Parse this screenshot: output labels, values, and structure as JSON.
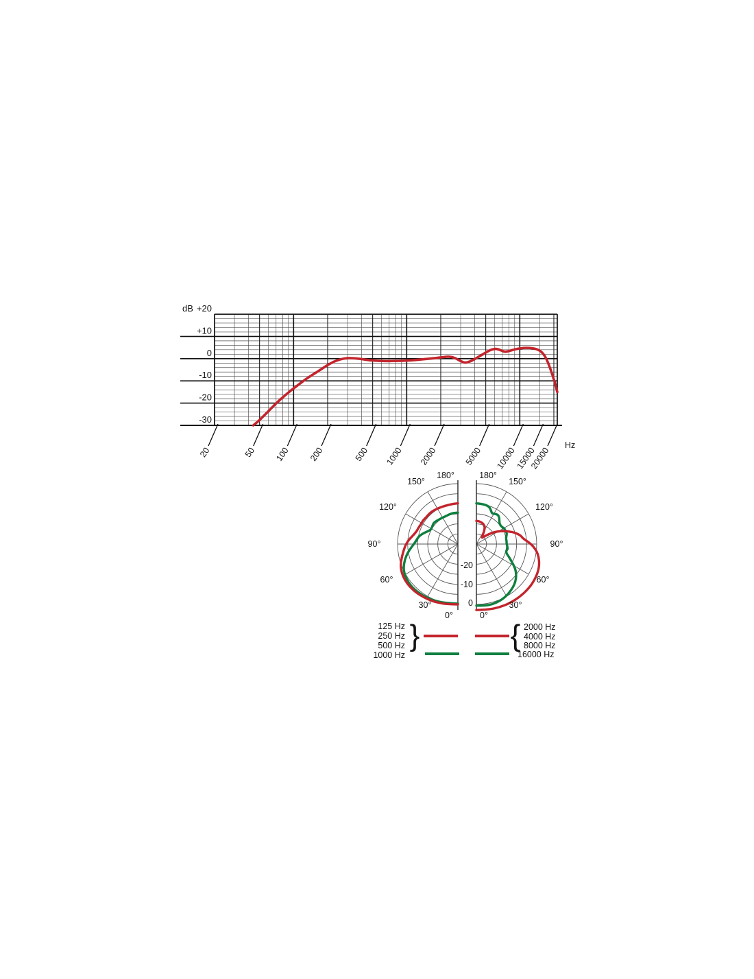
{
  "page": {
    "background": "#ffffff"
  },
  "colors": {
    "red": "#c3242c",
    "green": "#0e7f3e",
    "grid_major": "#111111",
    "grid_minor": "#4d4d4d",
    "polar_grid": "#555555"
  },
  "chart_data": [
    {
      "type": "line",
      "name": "frequency-response",
      "y_unit_label": "dB",
      "x_unit_label": "Hz",
      "y_tick_labels": [
        "+20",
        "+10",
        "0",
        "-10",
        "-20",
        "-30"
      ],
      "y_tick_values": [
        20,
        10,
        0,
        -10,
        -20,
        -30
      ],
      "x_tick_labels": [
        "20",
        "50",
        "100",
        "200",
        "500",
        "1000",
        "2000",
        "5000",
        "10000",
        "15000",
        "20000"
      ],
      "x_tick_values": [
        20,
        50,
        100,
        200,
        500,
        1000,
        2000,
        5000,
        10000,
        15000,
        20000
      ],
      "xlim": [
        20,
        21500
      ],
      "ylim": [
        -30,
        20
      ],
      "x_scale": "log",
      "grid": {
        "minor_db_step": 2,
        "major_db_step": 10
      },
      "series": [
        {
          "name": "on-axis frequency response",
          "color": "#c3242c",
          "points": [
            [
              44,
              -30
            ],
            [
              48,
              -28.5
            ],
            [
              55,
              -25.5
            ],
            [
              63,
              -22.5
            ],
            [
              72,
              -19.5
            ],
            [
              82,
              -17
            ],
            [
              95,
              -14.2
            ],
            [
              110,
              -11.8
            ],
            [
              128,
              -9.2
            ],
            [
              150,
              -7
            ],
            [
              175,
              -4.8
            ],
            [
              200,
              -2.8
            ],
            [
              230,
              -1.2
            ],
            [
              262,
              -0.2
            ],
            [
              300,
              0.3
            ],
            [
              345,
              0.2
            ],
            [
              400,
              -0.2
            ],
            [
              470,
              -0.7
            ],
            [
              560,
              -1
            ],
            [
              680,
              -1.1
            ],
            [
              820,
              -1
            ],
            [
              1000,
              -0.9
            ],
            [
              1200,
              -0.6
            ],
            [
              1450,
              -0.2
            ],
            [
              1750,
              0.2
            ],
            [
              2100,
              0.7
            ],
            [
              2400,
              1
            ],
            [
              2700,
              0.3
            ],
            [
              3000,
              -1.2
            ],
            [
              3300,
              -1.9
            ],
            [
              3700,
              -1.2
            ],
            [
              4200,
              0.5
            ],
            [
              4800,
              2.2
            ],
            [
              5400,
              3.8
            ],
            [
              6000,
              4.5
            ],
            [
              6500,
              4.2
            ],
            [
              6900,
              3.6
            ],
            [
              7400,
              3.0
            ],
            [
              8000,
              3.4
            ],
            [
              9000,
              4.2
            ],
            [
              10200,
              4.7
            ],
            [
              11500,
              4.9
            ],
            [
              13000,
              4.7
            ],
            [
              14300,
              4.2
            ],
            [
              15500,
              3.2
            ],
            [
              16800,
              1.0
            ],
            [
              18000,
              -2.5
            ],
            [
              19200,
              -6.5
            ],
            [
              20500,
              -11
            ],
            [
              21500,
              -15
            ]
          ]
        }
      ]
    },
    {
      "type": "polar",
      "name": "polar-pattern",
      "db_per_ring": 5,
      "ring_db_values": [
        0,
        -5,
        -10,
        -15,
        -20,
        -25
      ],
      "db_min": -30,
      "db_ring_labels": [
        "0",
        "-10",
        "-20"
      ],
      "angle_labels": [
        "0°",
        "30°",
        "60°",
        "90°",
        "120°",
        "150°",
        "180°"
      ],
      "halves": [
        {
          "side": "left",
          "series": [
            {
              "name": "1000 Hz",
              "color": "#0e7f3e",
              "points": [
                [
                  0,
                  -0.4
                ],
                [
                  12,
                  0
                ],
                [
                  24,
                  0.6
                ],
                [
                  34,
                  1.0
                ],
                [
                  44,
                  1.3
                ],
                [
                  52,
                  1.2
                ],
                [
                  60,
                  0.6
                ],
                [
                  67,
                  -0.6
                ],
                [
                  74,
                  -2.6
                ],
                [
                  80,
                  -4.6
                ],
                [
                  86,
                  -6.8
                ],
                [
                  91,
                  -8.4
                ],
                [
                  96,
                  -9.4
                ],
                [
                  101,
                  -10.2
                ],
                [
                  106,
                  -11.6
                ],
                [
                  111,
                  -13.2
                ],
                [
                  116,
                  -14.5
                ],
                [
                  121,
                  -14.8
                ],
                [
                  126,
                  -14.4
                ],
                [
                  131,
                  -14.0
                ],
                [
                  136,
                  -14.3
                ],
                [
                  142,
                  -14.6
                ],
                [
                  149,
                  -14.8
                ],
                [
                  156,
                  -14.9
                ],
                [
                  164,
                  -14.6
                ],
                [
                  172,
                  -14.4
                ],
                [
                  180,
                  -14.4
                ]
              ]
            },
            {
              "name": "125 / 250 / 500 Hz",
              "color": "#c3242c",
              "points": [
                [
                  0,
                  0
                ],
                [
                  10,
                  0.4
                ],
                [
                  20,
                  0.9
                ],
                [
                  30,
                  1.4
                ],
                [
                  40,
                  1.8
                ],
                [
                  48,
                  2.0
                ],
                [
                  56,
                  1.9
                ],
                [
                  63,
                  1.4
                ],
                [
                  70,
                  0.4
                ],
                [
                  78,
                  -1.6
                ],
                [
                  85,
                  -3.2
                ],
                [
                  90,
                  -4.2
                ],
                [
                  96,
                  -5.8
                ],
                [
                  102,
                  -7.6
                ],
                [
                  108,
                  -8.6
                ],
                [
                  113,
                  -8.8
                ],
                [
                  118,
                  -9.2
                ],
                [
                  124,
                  -9.0
                ],
                [
                  130,
                  -9.4
                ],
                [
                  137,
                  -9.2
                ],
                [
                  144,
                  -9.4
                ],
                [
                  151,
                  -9.7
                ],
                [
                  158,
                  -9.9
                ],
                [
                  166,
                  -10
                ],
                [
                  173,
                  -9.9
                ],
                [
                  180,
                  -9.8
                ]
              ]
            }
          ]
        },
        {
          "side": "right",
          "series": [
            {
              "name": "16000 Hz",
              "color": "#0e7f3e",
              "points": [
                [
                  0,
                  0.6
                ],
                [
                  8,
                  0.9
                ],
                [
                  15,
                  1.0
                ],
                [
                  22,
                  0.6
                ],
                [
                  28,
                  0.0
                ],
                [
                  34,
                  -0.8
                ],
                [
                  40,
                  -1.8
                ],
                [
                  46,
                  -3.0
                ],
                [
                  52,
                  -4.8
                ],
                [
                  58,
                  -7.2
                ],
                [
                  64,
                  -10.6
                ],
                [
                  69,
                  -12.8
                ],
                [
                  73,
                  -14.4
                ],
                [
                  77,
                  -14.8
                ],
                [
                  81,
                  -14.2
                ],
                [
                  86,
                  -14.6
                ],
                [
                  91,
                  -15.0
                ],
                [
                  96,
                  -14.9
                ],
                [
                  101,
                  -15.0
                ],
                [
                  106,
                  -14.4
                ],
                [
                  110,
                  -13.9
                ],
                [
                  114,
                  -14.2
                ],
                [
                  118,
                  -14.0
                ],
                [
                  123,
                  -14.6
                ],
                [
                  128,
                  -14.9
                ],
                [
                  133,
                  -14.4
                ],
                [
                  138,
                  -12.9
                ],
                [
                  143,
                  -11.9
                ],
                [
                  148,
                  -12.3
                ],
                [
                  153,
                  -13.0
                ],
                [
                  157,
                  -11.6
                ],
                [
                  161,
                  -10.4
                ],
                [
                  167,
                  -10.0
                ],
                [
                  173,
                  -9.9
                ],
                [
                  180,
                  -9.8
                ]
              ]
            },
            {
              "name": "2000 / 4000 / 8000 Hz",
              "color": "#c3242c",
              "points": [
                [
                  0,
                  2.8
                ],
                [
                  10,
                  3.1
                ],
                [
                  20,
                  3.5
                ],
                [
                  30,
                  3.8
                ],
                [
                  40,
                  4.0
                ],
                [
                  50,
                  4.1
                ],
                [
                  58,
                  4.0
                ],
                [
                  66,
                  3.6
                ],
                [
                  72,
                  2.9
                ],
                [
                  78,
                  1.7
                ],
                [
                  83,
                  0.3
                ],
                [
                  88,
                  -1.8
                ],
                [
                  92,
                  -4.0
                ],
                [
                  95,
                  -5.8
                ],
                [
                  98,
                  -7.0
                ],
                [
                  101,
                  -7.6
                ],
                [
                  104,
                  -9.0
                ],
                [
                  107,
                  -10.4
                ],
                [
                  111,
                  -12.6
                ],
                [
                  116,
                  -15.2
                ],
                [
                  121,
                  -17.8
                ],
                [
                  127,
                  -21.0
                ],
                [
                  133,
                  -24.2
                ],
                [
                  138,
                  -26.0
                ],
                [
                  143,
                  -25.2
                ],
                [
                  148,
                  -22.8
                ],
                [
                  153,
                  -20.8
                ],
                [
                  159,
                  -19.6
                ],
                [
                  166,
                  -19.0
                ],
                [
                  173,
                  -18.6
                ],
                [
                  180,
                  -18.5
                ]
              ]
            }
          ]
        }
      ]
    }
  ],
  "legend": {
    "left_bracket_labels": [
      "125 Hz",
      "250 Hz",
      "500 Hz"
    ],
    "left_bracket_glyph": "}",
    "left_single_label": "1000 Hz",
    "right_bracket_labels": [
      "2000 Hz",
      "4000 Hz",
      "8000 Hz"
    ],
    "right_bracket_glyph": "{",
    "right_single_label": "16000 Hz",
    "red_color": "#c3242c",
    "green_color": "#0e7f3e"
  }
}
